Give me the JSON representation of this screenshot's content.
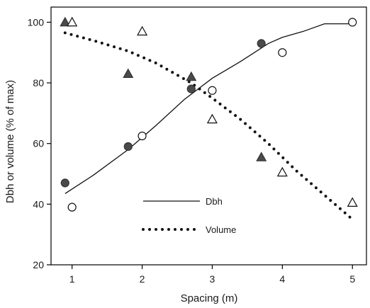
{
  "chart_data": {
    "type": "scatter",
    "xlabel": "Spacing (m)",
    "ylabel": "Dbh or volume (% of max)",
    "xlim": [
      0.7,
      5.2
    ],
    "ylim": [
      20,
      105
    ],
    "xticks": [
      1,
      2,
      3,
      4,
      5
    ],
    "yticks": [
      20,
      40,
      60,
      80,
      100
    ],
    "grid": false,
    "legend": {
      "placement": "lower-center",
      "entries": [
        {
          "label": "Dbh",
          "style": "solid"
        },
        {
          "label": "Volume",
          "style": "dotted"
        }
      ]
    },
    "lines": [
      {
        "name": "Dbh",
        "style": "solid",
        "x": [
          0.9,
          1.3,
          1.8,
          2.2,
          2.6,
          3.0,
          3.4,
          3.8,
          4.0,
          4.3,
          4.6,
          5.0
        ],
        "y": [
          43.5,
          49.5,
          58,
          66,
          74.5,
          81.5,
          87,
          93,
          95,
          97,
          99.5,
          99.5
        ]
      },
      {
        "name": "Volume",
        "style": "dotted",
        "x": [
          0.9,
          1.3,
          1.8,
          2.2,
          2.7,
          3.0,
          3.4,
          3.8,
          4.2,
          4.6,
          5.0
        ],
        "y": [
          96.5,
          94,
          90.5,
          86.5,
          80,
          75,
          68,
          60,
          51,
          43,
          35
        ]
      }
    ],
    "points": [
      {
        "marker": "filled-circle",
        "x": [
          0.9,
          1.8,
          2.7,
          3.7
        ],
        "y": [
          47,
          59,
          78,
          93
        ]
      },
      {
        "marker": "open-circle",
        "x": [
          1.0,
          2.0,
          3.0,
          4.0,
          5.0
        ],
        "y": [
          39,
          62.5,
          77.5,
          90,
          100
        ]
      },
      {
        "marker": "filled-triangle",
        "x": [
          0.9,
          1.8,
          2.7,
          3.7
        ],
        "y": [
          100,
          83,
          82,
          55.5
        ]
      },
      {
        "marker": "open-triangle",
        "x": [
          1.0,
          2.0,
          3.0,
          4.0,
          5.0
        ],
        "y": [
          100,
          97,
          68,
          50.5,
          40.5
        ]
      }
    ]
  }
}
